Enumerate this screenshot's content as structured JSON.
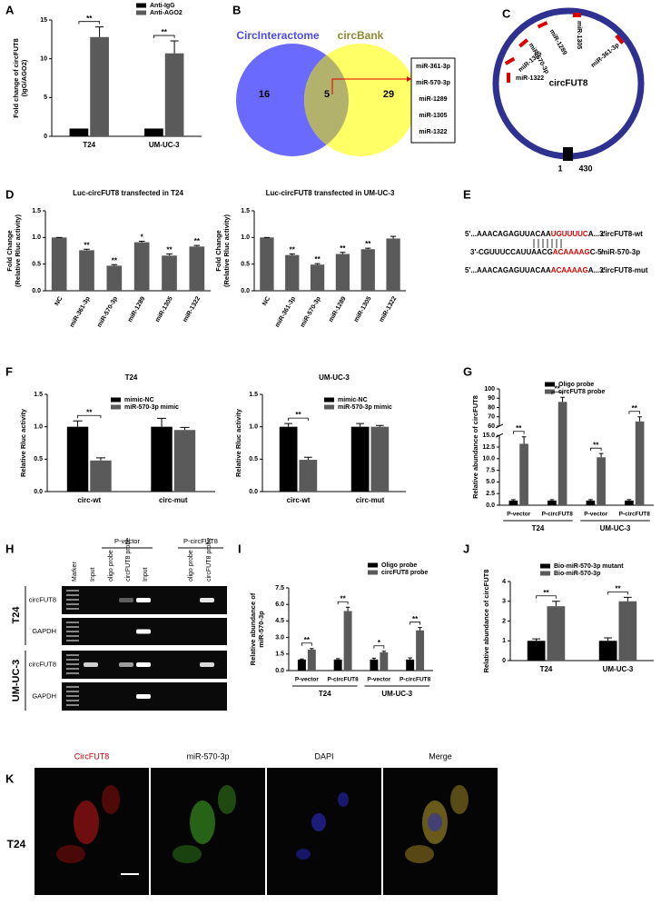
{
  "panel_labels": [
    "A",
    "B",
    "C",
    "D",
    "E",
    "F",
    "G",
    "H",
    "I",
    "J",
    "K"
  ],
  "chart_data": [
    {
      "type": "bar",
      "ylabel": [
        "Fold change of circFUT8",
        "(IgG/AGO2)"
      ],
      "categories": [
        "T24",
        "UM-UC-3"
      ],
      "series": [
        {
          "name": "Anti-IgG",
          "color": "#000000",
          "values": [
            1,
            1
          ]
        },
        {
          "name": "Anti-AGO2",
          "color": "#5a5a5a",
          "values": [
            12.8,
            10.7
          ],
          "errors": [
            1.3,
            1.6
          ]
        }
      ],
      "ylim": [
        0,
        15
      ],
      "yticks": [
        0,
        5,
        10,
        15
      ],
      "significance": [
        "**",
        "**"
      ]
    },
    {
      "type": "bar",
      "title": "Luc-circFUT8 transfected in T24",
      "ylabel": [
        "Fold Change",
        "(Relative Rluc activity)"
      ],
      "categories": [
        "NC",
        "miR-361-3p",
        "miR-570-3p",
        "miR-1289",
        "miR-1305",
        "miR-1322"
      ],
      "series": [
        {
          "color": "#5a5a5a",
          "values": [
            1.0,
            0.76,
            0.47,
            0.91,
            0.66,
            0.83
          ],
          "errors": [
            0,
            0.02,
            0.02,
            0.02,
            0.03,
            0.02
          ]
        }
      ],
      "ylim": [
        0,
        1.5
      ],
      "yticks": [
        {
          "value": 0,
          "label": "0.0"
        },
        {
          "value": 0.5,
          "label": "0.5"
        },
        {
          "value": 1,
          "label": "1.0"
        },
        {
          "value": 1.5,
          "label": "1.5"
        }
      ],
      "significance": [
        null,
        "**",
        "**",
        "*",
        "**",
        "**"
      ]
    },
    {
      "type": "bar",
      "title": "Luc-circFUT8 transfected in UM-UC-3",
      "ylabel": [
        "Fold Change",
        "(Relative Rluc activity)"
      ],
      "categories": [
        "NC",
        "miR-361-3p",
        "miR-570-3p",
        "miR-1289",
        "miR-1305",
        "miR-1322"
      ],
      "series": [
        {
          "color": "#5a5a5a",
          "values": [
            1.0,
            0.67,
            0.49,
            0.69,
            0.78,
            0.98
          ],
          "errors": [
            0,
            0.02,
            0.02,
            0.03,
            0.02,
            0.04
          ]
        }
      ],
      "ylim": [
        0,
        1.5
      ],
      "yticks": [
        {
          "value": 0,
          "label": "0.0"
        },
        {
          "value": 0.5,
          "label": "0.5"
        },
        {
          "value": 1,
          "label": "1.0"
        },
        {
          "value": 1.5,
          "label": "1.5"
        }
      ],
      "significance": [
        null,
        "**",
        "**",
        "**",
        "**",
        null
      ]
    },
    {
      "type": "bar",
      "title": "T24",
      "ylabel": [
        "Relative Rluc activity"
      ],
      "categories": [
        "circ-wt",
        "circ-mut"
      ],
      "series": [
        {
          "name": "mimic-NC",
          "color": "#000000",
          "values": [
            1.0,
            1.0
          ],
          "errors": [
            0.09,
            0.13
          ]
        },
        {
          "name": "miR-570-3p mimic",
          "color": "#5a5a5a",
          "values": [
            0.48,
            0.95
          ],
          "errors": [
            0.04,
            0.04
          ]
        }
      ],
      "ylim": [
        0,
        1.5
      ],
      "yticks": [
        {
          "value": 0,
          "label": "0.0"
        },
        {
          "value": 0.5,
          "label": "0.5"
        },
        {
          "value": 1,
          "label": "1.0"
        },
        {
          "value": 1.5,
          "label": "1.5"
        }
      ],
      "significance": [
        "**",
        null
      ]
    },
    {
      "type": "bar",
      "title": "UM-UC-3",
      "ylabel": [
        "Relative Rluc activity"
      ],
      "categories": [
        "circ-wt",
        "circ-mut"
      ],
      "series": [
        {
          "name": "mimic-NC",
          "color": "#000000",
          "values": [
            1.0,
            1.0
          ],
          "errors": [
            0.05,
            0.05
          ]
        },
        {
          "name": "miR-570-3p mimic",
          "color": "#5a5a5a",
          "values": [
            0.49,
            1.0
          ],
          "errors": [
            0.04,
            0.02
          ]
        }
      ],
      "ylim": [
        0,
        1.5
      ],
      "yticks": [
        {
          "value": 0,
          "label": "0.0"
        },
        {
          "value": 0.5,
          "label": "0.5"
        },
        {
          "value": 1,
          "label": "1.0"
        },
        {
          "value": 1.5,
          "label": "1.5"
        }
      ],
      "significance": [
        "**",
        null
      ]
    },
    {
      "type": "bar",
      "ylabel": [
        "Relative abundance of circFUT8"
      ],
      "categories": [
        "P-vector",
        "P-circFUT8",
        "P-vector",
        "P-circFUT8"
      ],
      "groups": [
        "T24",
        "UM-UC-3"
      ],
      "series": [
        {
          "name": "Oligo probe",
          "color": "#000000",
          "values": [
            1,
            1,
            1,
            1
          ],
          "errors": [
            0.2,
            0.2,
            0.2,
            0.2
          ]
        },
        {
          "name": "circFUT8 probe",
          "color": "#5a5a5a",
          "values": [
            13.2,
            86,
            10.3,
            65
          ],
          "errors": [
            1.5,
            5,
            0.8,
            5
          ]
        }
      ],
      "ylim": [
        [
          0,
          15
        ],
        [
          60,
          100
        ]
      ],
      "yticks": [
        {
          "value": 0,
          "label": "0.0"
        },
        {
          "value": 2.5,
          "label": "2.5"
        },
        {
          "value": 5,
          "label": "5.0"
        },
        {
          "value": 7.5,
          "label": "7.5"
        },
        {
          "value": 10,
          "label": "10.0"
        },
        {
          "value": 12.5,
          "label": "12.5"
        },
        {
          "value": 15,
          "label": "15.0"
        },
        60,
        70,
        80,
        90,
        100
      ],
      "significance": [
        "**",
        "**",
        "**",
        "**"
      ]
    },
    {
      "type": "bar",
      "ylabel": [
        "Relative abundance of",
        "miR-570-3p"
      ],
      "categories": [
        "P-vector",
        "P-circFUT8",
        "P-vector",
        "P-circFUT8"
      ],
      "groups": [
        "T24",
        "UM-UC-3"
      ],
      "series": [
        {
          "name": "Oligo probe",
          "color": "#000000",
          "values": [
            1.0,
            1.0,
            1.0,
            1.0
          ],
          "errors": [
            0.05,
            0.08,
            0.12,
            0.15
          ]
        },
        {
          "name": "circFUT8 probe",
          "color": "#5a5a5a",
          "values": [
            1.9,
            5.4,
            1.65,
            3.65
          ],
          "errors": [
            0.1,
            0.35,
            0.1,
            0.25
          ]
        }
      ],
      "ylim": [
        0,
        7.5
      ],
      "yticks": [
        {
          "value": 0,
          "label": "0.0"
        },
        {
          "value": 1.5,
          "label": "1.5"
        },
        {
          "value": 3,
          "label": "3.0"
        },
        {
          "value": 4.5,
          "label": "4.5"
        },
        {
          "value": 6,
          "label": "6.0"
        },
        {
          "value": 7.5,
          "label": "7.5"
        }
      ],
      "significance": [
        "**",
        "**",
        "*",
        "**"
      ]
    },
    {
      "type": "bar",
      "ylabel": [
        "Relative abundance of circFUT8"
      ],
      "categories": [
        "T24",
        "UM-UC-3"
      ],
      "series": [
        {
          "name": "Bio-miR-570-3p mutant",
          "color": "#000000",
          "values": [
            1.0,
            1.0
          ],
          "errors": [
            0.1,
            0.15
          ]
        },
        {
          "name": "Bio-miR-570-3p",
          "color": "#5a5a5a",
          "values": [
            2.75,
            3.0
          ],
          "errors": [
            0.25,
            0.2
          ]
        }
      ],
      "ylim": [
        0,
        4
      ],
      "yticks": [
        0,
        1,
        2,
        3,
        4
      ],
      "significance": [
        "**",
        "**"
      ]
    }
  ],
  "venn": {
    "sets": [
      "CircInteractome",
      "circBank"
    ],
    "counts": [
      16,
      5,
      29
    ],
    "mirnas": [
      "miR-361-3p",
      "miR-570-3p",
      "miR-1289",
      "miR-1305",
      "miR-1322"
    ]
  },
  "circle_diagram": {
    "name": "circFUT8",
    "sites": [
      "miR-1322",
      "miR-1305",
      "miR-570-3p",
      "miR-1289",
      "miR-1305",
      "miR-361-3p"
    ],
    "start": 1,
    "end": 430
  },
  "sequence_alignment": [
    {
      "segments": [
        "5'...AAACAGAGUUACAA",
        "UGUUUUC",
        "A...3'"
      ],
      "name": "circFUT8-wt"
    },
    {
      "segments": [
        "3'-CGUUUCCAUUAACG",
        "ACAAAAG",
        "C-5'"
      ],
      "name": "miR-570-3p"
    },
    {
      "segments": [
        "5'...AAACAGAGUUACAA",
        "ACAAAAG",
        "A...3'"
      ],
      "name": "circFUT8-mut"
    }
  ],
  "gel": {
    "lanes": [
      "Marker",
      "Input",
      "oligo probe",
      "circFUT8 probe",
      "Input",
      "oligo probe",
      "circFUT8 probe"
    ],
    "lane_groups": [
      "P-vector",
      "P-circFUT8"
    ],
    "rows": [
      "circFUT8",
      "GAPDH",
      "circFUT8",
      "GAPDH"
    ],
    "cell_lines": [
      "T24",
      "UM-UC-3"
    ]
  },
  "imaging": {
    "channels": [
      "CircFUT8",
      "miR-570-3p",
      "DAPI",
      "Merge"
    ],
    "row_label": "T24"
  }
}
